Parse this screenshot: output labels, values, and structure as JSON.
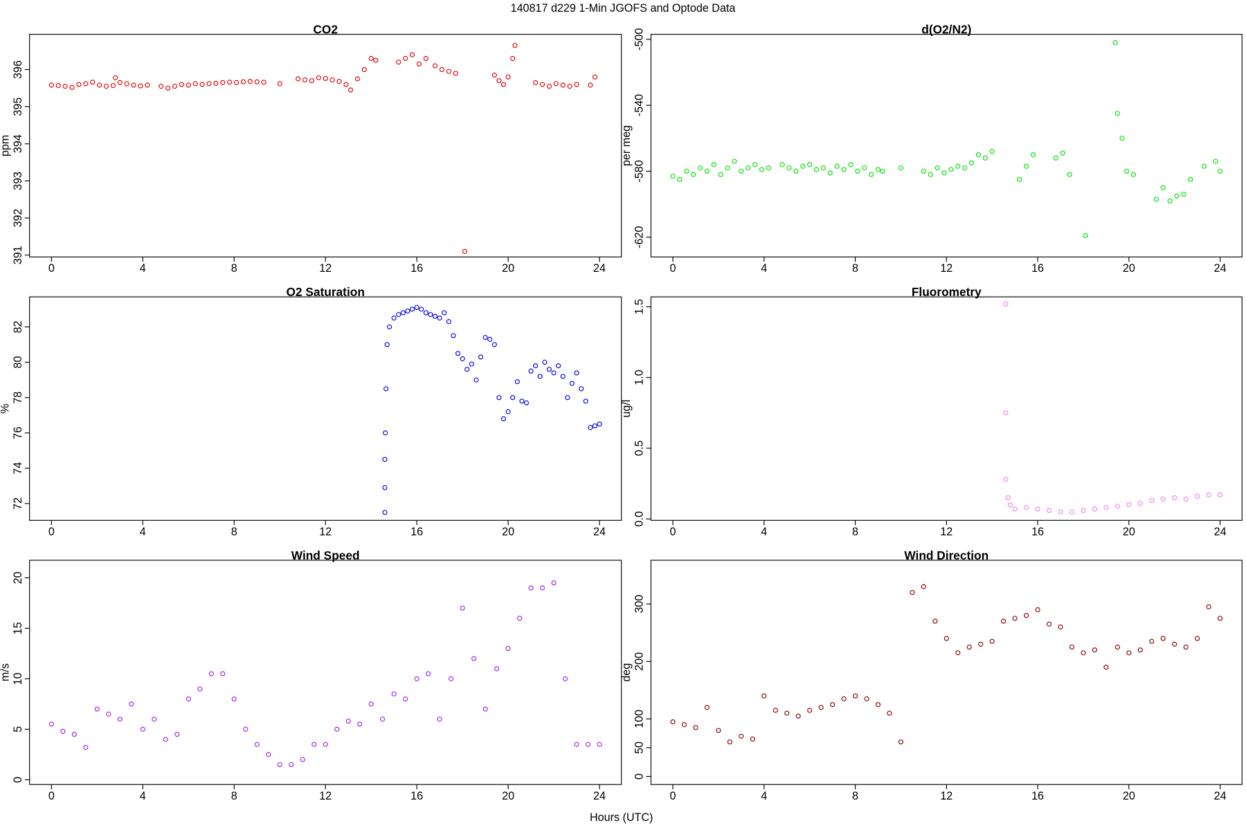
{
  "title": "140817   d229   1-Min  JGOFS and Optode Data",
  "x_label": "Hours (UTC)",
  "chart_data": [
    {
      "type": "scatter",
      "title": "CO2",
      "y_label": "ppm",
      "color": "#e00000",
      "xlim": [
        -0.96,
        24.96
      ],
      "xticks": [
        0,
        4,
        8,
        12,
        16,
        20,
        24
      ],
      "ylim": [
        390.95,
        396.95
      ],
      "yticks": [
        391,
        392,
        393,
        394,
        395,
        396
      ],
      "x": [
        0,
        0.3,
        0.6,
        0.9,
        1.2,
        1.5,
        1.8,
        2.1,
        2.4,
        2.7,
        2.8,
        3.0,
        3.3,
        3.6,
        3.9,
        4.2,
        4.8,
        5.1,
        5.4,
        5.7,
        6.0,
        6.3,
        6.6,
        6.9,
        7.2,
        7.5,
        7.8,
        8.1,
        8.4,
        8.7,
        9.0,
        9.3,
        10.0,
        10.8,
        11.1,
        11.4,
        11.7,
        12.0,
        12.3,
        12.6,
        12.9,
        13.1,
        13.4,
        13.7,
        14.0,
        14.2,
        15.2,
        15.5,
        15.8,
        16.1,
        16.4,
        16.8,
        17.1,
        17.4,
        17.7,
        18.1,
        19.4,
        19.6,
        19.8,
        20.0,
        20.2,
        20.3,
        21.2,
        21.5,
        21.8,
        22.1,
        22.4,
        22.7,
        23.0,
        23.6,
        23.8
      ],
      "values": [
        395.58,
        395.57,
        395.55,
        395.52,
        395.6,
        395.62,
        395.66,
        395.58,
        395.55,
        395.57,
        395.78,
        395.65,
        395.62,
        395.58,
        395.56,
        395.58,
        395.55,
        395.5,
        395.55,
        395.6,
        395.58,
        395.62,
        395.6,
        395.62,
        395.63,
        395.65,
        395.66,
        395.65,
        395.67,
        395.68,
        395.67,
        395.66,
        395.62,
        395.75,
        395.72,
        395.7,
        395.78,
        395.76,
        395.72,
        395.68,
        395.6,
        395.45,
        395.75,
        396.0,
        396.3,
        396.25,
        396.2,
        396.3,
        396.4,
        396.15,
        396.3,
        396.1,
        396.0,
        395.95,
        395.9,
        391.1,
        395.85,
        395.7,
        395.6,
        395.8,
        396.3,
        396.65,
        395.65,
        395.6,
        395.55,
        395.62,
        395.58,
        395.55,
        395.6,
        395.58,
        395.8
      ]
    },
    {
      "type": "scatter",
      "title": "d(O2/N2)",
      "y_label": "per meg",
      "color": "#00e000",
      "xlim": [
        -0.96,
        24.96
      ],
      "xticks": [
        0,
        4,
        8,
        12,
        16,
        20,
        24
      ],
      "ylim": [
        -632,
        -497
      ],
      "yticks": [
        -620,
        -580,
        -540,
        -500
      ],
      "x": [
        0,
        0.3,
        0.6,
        0.9,
        1.2,
        1.5,
        1.8,
        2.1,
        2.4,
        2.7,
        3.0,
        3.3,
        3.6,
        3.9,
        4.2,
        4.8,
        5.1,
        5.4,
        5.7,
        6.0,
        6.3,
        6.6,
        6.9,
        7.2,
        7.5,
        7.8,
        8.1,
        8.4,
        8.7,
        9.0,
        9.2,
        10.0,
        11.0,
        11.3,
        11.6,
        11.9,
        12.2,
        12.5,
        12.8,
        13.1,
        13.4,
        13.7,
        14.0,
        15.2,
        15.5,
        15.8,
        16.8,
        17.1,
        17.4,
        18.1,
        19.4,
        19.5,
        19.7,
        19.9,
        20.2,
        21.2,
        21.5,
        21.8,
        22.1,
        22.4,
        22.7,
        23.3,
        23.8,
        24.0
      ],
      "values": [
        -583,
        -585,
        -580,
        -582,
        -578,
        -580,
        -576,
        -582,
        -578,
        -574,
        -580,
        -578,
        -576,
        -579,
        -578,
        -576,
        -578,
        -580,
        -577,
        -576,
        -579,
        -578,
        -581,
        -577,
        -579,
        -576,
        -580,
        -578,
        -582,
        -579,
        -580,
        -578,
        -580,
        -582,
        -578,
        -581,
        -579,
        -577,
        -578,
        -575,
        -570,
        -572,
        -568,
        -585,
        -577,
        -570,
        -572,
        -569,
        -582,
        -619,
        -502,
        -545,
        -560,
        -580,
        -582,
        -597,
        -590,
        -598,
        -595,
        -594,
        -585,
        -577,
        -574,
        -580
      ]
    },
    {
      "type": "scatter",
      "title": "O2 Saturation",
      "y_label": "%",
      "color": "#0000ee",
      "xlim": [
        -0.96,
        24.96
      ],
      "xticks": [
        0,
        4,
        8,
        12,
        16,
        20,
        24
      ],
      "ylim": [
        71.05,
        83.7
      ],
      "yticks": [
        72,
        74,
        76,
        78,
        80,
        82
      ],
      "x": [
        14.6,
        14.6,
        14.6,
        14.62,
        14.65,
        14.7,
        14.8,
        15.0,
        15.2,
        15.4,
        15.6,
        15.8,
        16.0,
        16.2,
        16.4,
        16.6,
        16.8,
        17.0,
        17.2,
        17.4,
        17.6,
        17.8,
        18.0,
        18.2,
        18.4,
        18.6,
        18.8,
        19.0,
        19.2,
        19.4,
        19.6,
        19.8,
        20.0,
        20.2,
        20.4,
        20.6,
        20.8,
        21.0,
        21.2,
        21.4,
        21.6,
        21.8,
        22.0,
        22.2,
        22.4,
        22.6,
        22.8,
        23.0,
        23.2,
        23.4,
        23.6,
        23.8,
        24.0
      ],
      "values": [
        71.5,
        72.9,
        74.5,
        76.0,
        78.5,
        81.0,
        82.0,
        82.5,
        82.7,
        82.8,
        82.9,
        83.0,
        83.1,
        83.0,
        82.8,
        82.7,
        82.6,
        82.5,
        82.8,
        82.3,
        81.5,
        80.5,
        80.2,
        79.6,
        79.9,
        79.0,
        80.3,
        81.4,
        81.3,
        81.0,
        78.0,
        76.8,
        77.2,
        78.0,
        78.9,
        77.8,
        77.7,
        79.5,
        79.8,
        79.2,
        80.0,
        79.6,
        79.4,
        79.8,
        79.2,
        78.0,
        78.8,
        79.4,
        78.5,
        77.8,
        76.3,
        76.4,
        76.5
      ]
    },
    {
      "type": "scatter",
      "title": "Fluorometry",
      "y_label": "ug/l",
      "color": "#ee82ee",
      "xlim": [
        -0.96,
        24.96
      ],
      "xticks": [
        0,
        4,
        8,
        12,
        16,
        20,
        24
      ],
      "ylim": [
        -0.01,
        1.57
      ],
      "yticks": [
        {
          "value": 0,
          "label": "0.0"
        },
        0.5,
        {
          "value": 1,
          "label": "1.0"
        },
        1.5
      ],
      "x": [
        14.6,
        14.6,
        14.6,
        14.7,
        14.8,
        15.0,
        15.5,
        16.0,
        16.5,
        17.0,
        17.5,
        18.0,
        18.5,
        19.0,
        19.5,
        20.0,
        20.5,
        21.0,
        21.5,
        22.0,
        22.5,
        23.0,
        23.5,
        24.0
      ],
      "values": [
        1.52,
        0.75,
        0.28,
        0.15,
        0.1,
        0.07,
        0.08,
        0.07,
        0.06,
        0.05,
        0.05,
        0.06,
        0.07,
        0.08,
        0.09,
        0.1,
        0.11,
        0.13,
        0.14,
        0.15,
        0.14,
        0.16,
        0.17,
        0.17
      ]
    },
    {
      "type": "scatter",
      "title": "Wind Speed",
      "y_label": "m/s",
      "color": "#a020f0",
      "xlim": [
        -0.96,
        24.96
      ],
      "xticks": [
        0,
        4,
        8,
        12,
        16,
        20,
        24
      ],
      "ylim": [
        -0.47,
        21.74
      ],
      "yticks": [
        0,
        5,
        10,
        15,
        20
      ],
      "x": [
        0,
        0.5,
        1,
        1.5,
        2,
        2.5,
        3,
        3.5,
        4,
        4.5,
        5,
        5.5,
        6,
        6.5,
        7,
        7.5,
        8,
        8.5,
        9,
        9.5,
        10,
        10.5,
        11,
        11.5,
        12,
        12.5,
        13,
        13.5,
        14,
        14.5,
        15,
        15.5,
        16,
        16.5,
        17,
        17.5,
        18,
        18.5,
        19,
        19.5,
        20,
        20.5,
        21,
        21.5,
        22,
        22.5,
        23,
        23.5,
        24
      ],
      "values": [
        5.5,
        4.8,
        4.5,
        3.2,
        7,
        6.5,
        6,
        7.5,
        5,
        6,
        4,
        4.5,
        8,
        9,
        10.5,
        10.5,
        8,
        5,
        3.5,
        2.5,
        1.5,
        1.5,
        2,
        3.5,
        3.5,
        5,
        5.8,
        5.5,
        7.5,
        6,
        8.5,
        8,
        10,
        10.5,
        6,
        10,
        17,
        12,
        7,
        11,
        13,
        16,
        19,
        19,
        19.5,
        10,
        3.5,
        3.5,
        3.5
      ]
    },
    {
      "type": "scatter",
      "title": "Wind Direction",
      "y_label": "deg",
      "color": "#8b0000",
      "xlim": [
        -0.96,
        24.96
      ],
      "xticks": [
        0,
        4,
        8,
        12,
        16,
        20,
        24
      ],
      "ylim": [
        -14,
        376
      ],
      "yticks": [
        0,
        50,
        100,
        200,
        300
      ],
      "x": [
        0,
        0.5,
        1,
        1.5,
        2,
        2.5,
        3,
        3.5,
        4,
        4.5,
        5,
        5.5,
        6,
        6.5,
        7,
        7.5,
        8,
        8.5,
        9,
        9.5,
        10,
        10.5,
        11,
        11.5,
        12,
        12.5,
        13,
        13.5,
        14,
        14.5,
        15,
        15.5,
        16,
        16.5,
        17,
        17.5,
        18,
        18.5,
        19,
        19.5,
        20,
        20.5,
        21,
        21.5,
        22,
        22.5,
        23,
        23.5,
        24
      ],
      "values": [
        95,
        90,
        85,
        120,
        80,
        60,
        70,
        65,
        140,
        115,
        110,
        105,
        115,
        120,
        125,
        135,
        140,
        135,
        125,
        110,
        60,
        320,
        330,
        270,
        240,
        215,
        225,
        230,
        235,
        270,
        275,
        280,
        290,
        265,
        260,
        225,
        215,
        220,
        190,
        225,
        215,
        220,
        235,
        240,
        230,
        225,
        240,
        295,
        275
      ]
    }
  ]
}
